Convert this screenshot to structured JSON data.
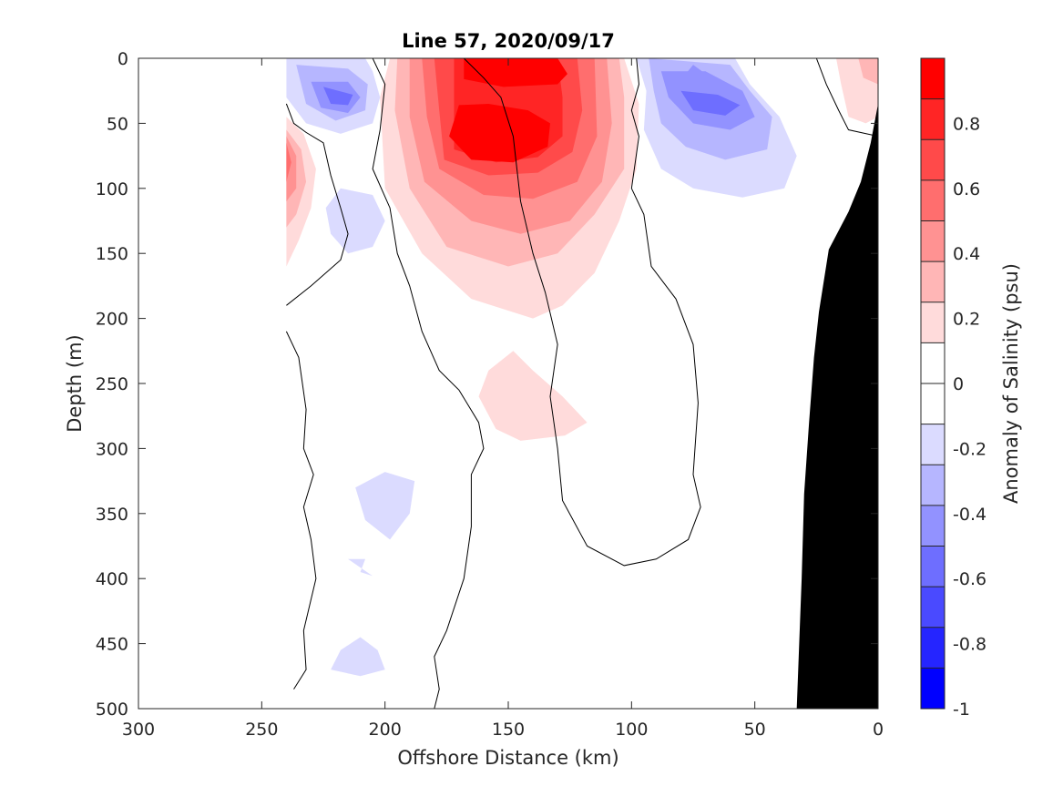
{
  "chart_data": {
    "type": "heatmap",
    "title": "Line 57, 2020/09/17",
    "xlabel": "Offshore Distance (km)",
    "ylabel": "Depth (m)",
    "xlim": [
      300,
      0
    ],
    "x_reversed": true,
    "ylim": [
      0,
      500
    ],
    "y_reversed": true,
    "xticks": [
      "300",
      "250",
      "200",
      "150",
      "100",
      "50",
      "0"
    ],
    "yticks": [
      "0",
      "50",
      "100",
      "150",
      "200",
      "250",
      "300",
      "350",
      "400",
      "450",
      "500"
    ],
    "colorbar": {
      "label": "Anomaly of Salinity (psu)",
      "range": [
        -1,
        1
      ],
      "levels": 14,
      "ticks": [
        "0.8",
        "0.6",
        "0.4",
        "0.2",
        "0",
        "-0.2",
        "-0.4",
        "-0.6",
        "-0.8",
        "-1"
      ],
      "tick_values": [
        0.8,
        0.6,
        0.4,
        0.2,
        0,
        -0.2,
        -0.4,
        -0.6,
        -0.8,
        -1
      ],
      "colors_top_to_bottom": [
        "#ff0000",
        "#ff2525",
        "#ff4a4a",
        "#ff6e6e",
        "#ff9292",
        "#ffb6b6",
        "#ffdbdb",
        "#ffffff",
        "#ffffff",
        "#dbdbff",
        "#b6b6ff",
        "#9292ff",
        "#6e6eff",
        "#4a4aff",
        "#2525ff",
        "#0000ff"
      ]
    },
    "features": [
      {
        "name": "positive anomaly core",
        "x_km": 150,
        "depth_m": 60,
        "value": 0.95
      },
      {
        "name": "surface positive anomaly",
        "x_km": 145,
        "depth_m": 10,
        "value": 0.85
      },
      {
        "name": "nearshore negative anomaly",
        "x_km": 70,
        "depth_m": 35,
        "value": -0.55
      },
      {
        "name": "offshore negative anomaly",
        "x_km": 220,
        "depth_m": 30,
        "value": -0.5
      },
      {
        "name": "offshore positive anomaly",
        "x_km": 238,
        "depth_m": 75,
        "value": 0.5
      },
      {
        "name": "deep positive patch",
        "x_km": 135,
        "depth_m": 265,
        "value": 0.15
      },
      {
        "name": "coastal positive patch",
        "x_km": 8,
        "depth_m": 25,
        "value": 0.2
      }
    ],
    "seafloor_color": "#000000",
    "zero_contour_color": "#000000"
  }
}
